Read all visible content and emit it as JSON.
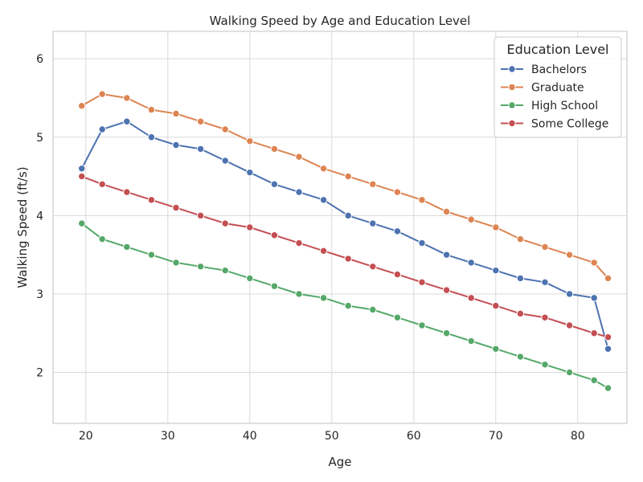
{
  "chart_data": {
    "type": "line",
    "title": "Walking Speed by Age and Education Level",
    "xlabel": "Age",
    "ylabel": "Walking Speed (ft/s)",
    "xlim": [
      16,
      86
    ],
    "ylim": [
      1.35,
      6.35
    ],
    "x_ticks": [
      20,
      30,
      40,
      50,
      60,
      70,
      80
    ],
    "y_ticks": [
      2,
      3,
      4,
      5,
      6
    ],
    "grid": true,
    "legend": {
      "title": "Education Level",
      "placement": "top-right"
    },
    "marker": "circle",
    "series": [
      {
        "name": "Bachelors",
        "color": "#4c72b0",
        "x": [
          19.5,
          22,
          25,
          28,
          31,
          34,
          37,
          40,
          43,
          46,
          49,
          52,
          55,
          58,
          61,
          64,
          67,
          70,
          73,
          76,
          79,
          82,
          83.7
        ],
        "y": [
          4.6,
          5.1,
          5.2,
          5.0,
          4.9,
          4.85,
          4.7,
          4.55,
          4.4,
          4.3,
          4.2,
          4.0,
          3.9,
          3.8,
          3.65,
          3.5,
          3.4,
          3.3,
          3.2,
          3.15,
          3.0,
          2.95,
          2.3
        ]
      },
      {
        "name": "Graduate",
        "color": "#dd8452",
        "x": [
          19.5,
          22,
          25,
          28,
          31,
          34,
          37,
          40,
          43,
          46,
          49,
          52,
          55,
          58,
          61,
          64,
          67,
          70,
          73,
          76,
          79,
          82,
          83.7
        ],
        "y": [
          5.4,
          5.55,
          5.5,
          5.35,
          5.3,
          5.2,
          5.1,
          4.95,
          4.85,
          4.75,
          4.6,
          4.5,
          4.4,
          4.3,
          4.2,
          4.05,
          3.95,
          3.85,
          3.7,
          3.6,
          3.5,
          3.4,
          3.2
        ]
      },
      {
        "name": "High School",
        "color": "#55a868",
        "x": [
          19.5,
          22,
          25,
          28,
          31,
          34,
          37,
          40,
          43,
          46,
          49,
          52,
          55,
          58,
          61,
          64,
          67,
          70,
          73,
          76,
          79,
          82,
          83.7
        ],
        "y": [
          3.9,
          3.7,
          3.6,
          3.5,
          3.4,
          3.35,
          3.3,
          3.2,
          3.1,
          3.0,
          2.95,
          2.85,
          2.8,
          2.7,
          2.6,
          2.5,
          2.4,
          2.3,
          2.2,
          2.1,
          2.0,
          1.9,
          1.8
        ]
      },
      {
        "name": "Some College",
        "color": "#c44e52",
        "x": [
          19.5,
          22,
          25,
          28,
          31,
          34,
          37,
          40,
          43,
          46,
          49,
          52,
          55,
          58,
          61,
          64,
          67,
          70,
          73,
          76,
          79,
          82,
          83.7
        ],
        "y": [
          4.5,
          4.4,
          4.3,
          4.2,
          4.1,
          4.0,
          3.9,
          3.85,
          3.75,
          3.65,
          3.55,
          3.45,
          3.35,
          3.25,
          3.15,
          3.05,
          2.95,
          2.85,
          2.75,
          2.7,
          2.6,
          2.5,
          2.45
        ]
      }
    ]
  }
}
